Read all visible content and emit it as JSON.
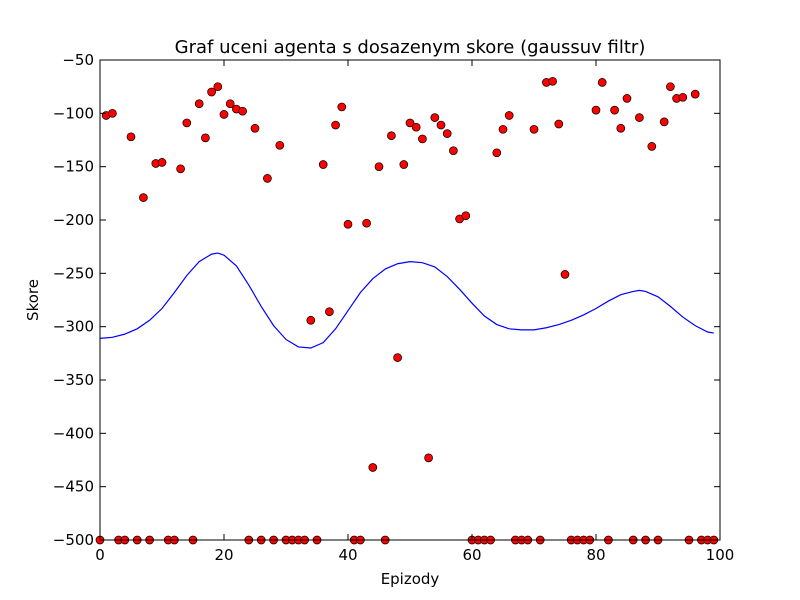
{
  "chart_data": {
    "type": "scatter",
    "title": "Graf uceni agenta s dosazenym skore (gaussuv filtr)",
    "xlabel": "Epizody",
    "ylabel": "Skore",
    "xlim": [
      0,
      100
    ],
    "ylim": [
      -500,
      -50
    ],
    "xticks": [
      0,
      20,
      40,
      60,
      80,
      100
    ],
    "yticks": [
      -50,
      -100,
      -150,
      -200,
      -250,
      -300,
      -350,
      -400,
      -450,
      -500
    ],
    "grid": false,
    "legend": "none",
    "series": [
      {
        "type": "scatter",
        "color": "#ff0000",
        "points": [
          [
            0,
            -500
          ],
          [
            1,
            -102
          ],
          [
            2,
            -100
          ],
          [
            3,
            -500
          ],
          [
            4,
            -500
          ],
          [
            5,
            -122
          ],
          [
            6,
            -500
          ],
          [
            7,
            -179
          ],
          [
            8,
            -500
          ],
          [
            9,
            -147
          ],
          [
            10,
            -146
          ],
          [
            11,
            -500
          ],
          [
            12,
            -500
          ],
          [
            13,
            -152
          ],
          [
            14,
            -109
          ],
          [
            15,
            -500
          ],
          [
            16,
            -91
          ],
          [
            17,
            -123
          ],
          [
            18,
            -80
          ],
          [
            19,
            -75
          ],
          [
            20,
            -101
          ],
          [
            21,
            -91
          ],
          [
            22,
            -96
          ],
          [
            23,
            -98
          ],
          [
            24,
            -500
          ],
          [
            25,
            -114
          ],
          [
            26,
            -500
          ],
          [
            27,
            -161
          ],
          [
            28,
            -500
          ],
          [
            29,
            -130
          ],
          [
            30,
            -500
          ],
          [
            31,
            -500
          ],
          [
            32,
            -500
          ],
          [
            33,
            -500
          ],
          [
            34,
            -294
          ],
          [
            35,
            -500
          ],
          [
            36,
            -148
          ],
          [
            37,
            -286
          ],
          [
            38,
            -111
          ],
          [
            39,
            -94
          ],
          [
            40,
            -204
          ],
          [
            41,
            -500
          ],
          [
            42,
            -500
          ],
          [
            43,
            -203
          ],
          [
            44,
            -432
          ],
          [
            45,
            -150
          ],
          [
            46,
            -500
          ],
          [
            47,
            -121
          ],
          [
            48,
            -329
          ],
          [
            49,
            -148
          ],
          [
            50,
            -109
          ],
          [
            51,
            -113
          ],
          [
            52,
            -124
          ],
          [
            53,
            -423
          ],
          [
            54,
            -104
          ],
          [
            55,
            -111
          ],
          [
            56,
            -119
          ],
          [
            57,
            -135
          ],
          [
            58,
            -199
          ],
          [
            59,
            -196
          ],
          [
            60,
            -500
          ],
          [
            61,
            -500
          ],
          [
            62,
            -500
          ],
          [
            63,
            -500
          ],
          [
            64,
            -137
          ],
          [
            65,
            -115
          ],
          [
            66,
            -102
          ],
          [
            67,
            -500
          ],
          [
            68,
            -500
          ],
          [
            69,
            -500
          ],
          [
            70,
            -115
          ],
          [
            71,
            -500
          ],
          [
            72,
            -71
          ],
          [
            73,
            -70
          ],
          [
            74,
            -110
          ],
          [
            75,
            -251
          ],
          [
            76,
            -500
          ],
          [
            77,
            -500
          ],
          [
            78,
            -500
          ],
          [
            79,
            -500
          ],
          [
            80,
            -97
          ],
          [
            81,
            -71
          ],
          [
            82,
            -500
          ],
          [
            83,
            -97
          ],
          [
            84,
            -114
          ],
          [
            85,
            -86
          ],
          [
            86,
            -500
          ],
          [
            87,
            -104
          ],
          [
            88,
            -500
          ],
          [
            89,
            -131
          ],
          [
            90,
            -500
          ],
          [
            91,
            -108
          ],
          [
            92,
            -75
          ],
          [
            93,
            -86
          ],
          [
            94,
            -85
          ],
          [
            95,
            -500
          ],
          [
            96,
            -82
          ],
          [
            97,
            -500
          ],
          [
            98,
            -500
          ],
          [
            99,
            -500
          ]
        ]
      },
      {
        "type": "line",
        "color": "#0000ff",
        "points": [
          [
            0,
            -311
          ],
          [
            2,
            -310
          ],
          [
            4,
            -307
          ],
          [
            6,
            -302
          ],
          [
            8,
            -294
          ],
          [
            10,
            -283
          ],
          [
            12,
            -268
          ],
          [
            14,
            -252
          ],
          [
            16,
            -239
          ],
          [
            18,
            -232
          ],
          [
            19,
            -231
          ],
          [
            20,
            -233
          ],
          [
            22,
            -243
          ],
          [
            24,
            -261
          ],
          [
            26,
            -281
          ],
          [
            28,
            -299
          ],
          [
            30,
            -312
          ],
          [
            32,
            -319
          ],
          [
            34,
            -320
          ],
          [
            36,
            -315
          ],
          [
            38,
            -302
          ],
          [
            40,
            -285
          ],
          [
            42,
            -268
          ],
          [
            44,
            -255
          ],
          [
            46,
            -246
          ],
          [
            48,
            -241
          ],
          [
            50,
            -239
          ],
          [
            52,
            -240
          ],
          [
            54,
            -244
          ],
          [
            56,
            -253
          ],
          [
            58,
            -265
          ],
          [
            60,
            -278
          ],
          [
            62,
            -290
          ],
          [
            64,
            -298
          ],
          [
            66,
            -302
          ],
          [
            68,
            -303
          ],
          [
            70,
            -303
          ],
          [
            72,
            -301
          ],
          [
            74,
            -298
          ],
          [
            76,
            -294
          ],
          [
            78,
            -289
          ],
          [
            80,
            -283
          ],
          [
            82,
            -276
          ],
          [
            84,
            -270
          ],
          [
            86,
            -267
          ],
          [
            87,
            -266
          ],
          [
            88,
            -267
          ],
          [
            90,
            -272
          ],
          [
            92,
            -281
          ],
          [
            94,
            -291
          ],
          [
            96,
            -299
          ],
          [
            98,
            -305
          ],
          [
            99,
            -306
          ]
        ]
      }
    ]
  }
}
